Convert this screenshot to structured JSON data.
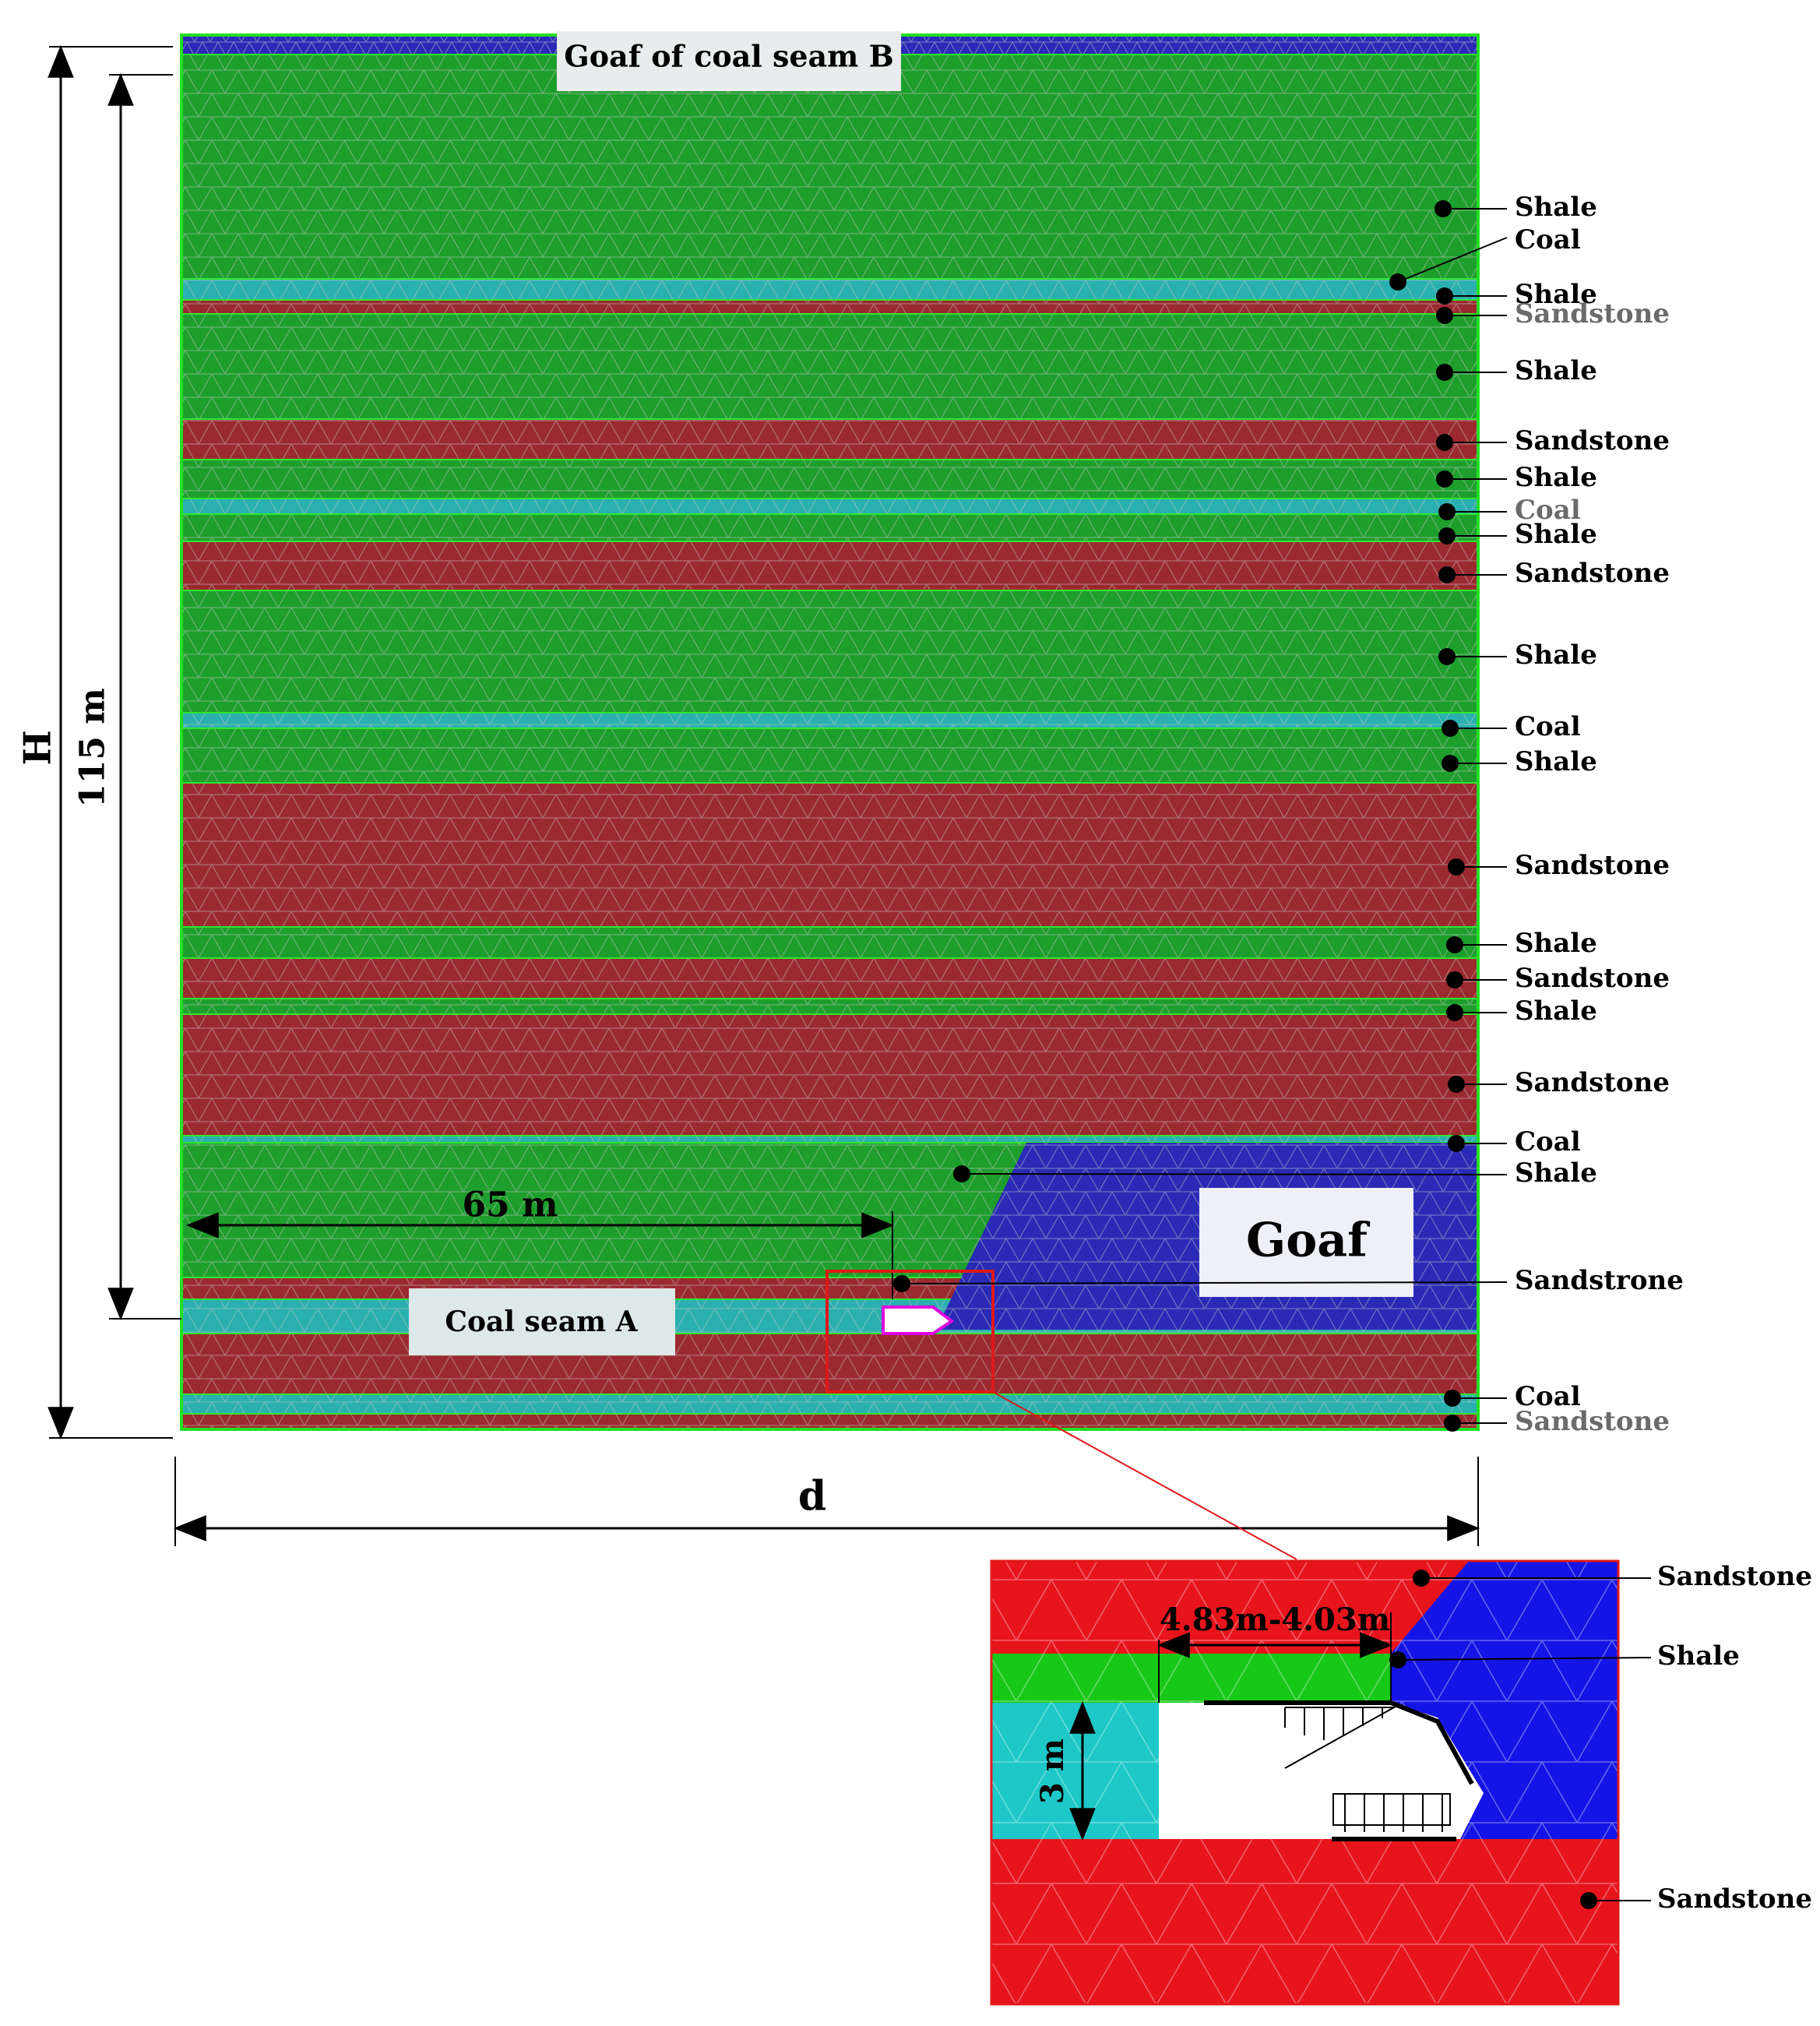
{
  "figure": {
    "top_label": "Goaf of coal seam B",
    "goaf_label": "Goaf",
    "coal_seam_label": "Coal seam A",
    "dim_H": "H",
    "dim_115": "115 m",
    "dim_65": "65 m",
    "dim_d": "d",
    "inset_width_label": "4.83m-4.03m",
    "inset_height_label": "3 m"
  },
  "strata_labels": [
    {
      "text": "Shale"
    },
    {
      "text": "Coal"
    },
    {
      "text": "Shale"
    },
    {
      "text": "Sandstone",
      "gray": true
    },
    {
      "text": "Shale"
    },
    {
      "text": "Sandstone"
    },
    {
      "text": "Shale"
    },
    {
      "text": "Coal",
      "gray": true
    },
    {
      "text": "Shale"
    },
    {
      "text": "Sandstone"
    },
    {
      "text": "Shale"
    },
    {
      "text": "Coal"
    },
    {
      "text": "Shale"
    },
    {
      "text": "Sandstone"
    },
    {
      "text": "Shale"
    },
    {
      "text": "Sandstone"
    },
    {
      "text": "Shale"
    },
    {
      "text": "Sandstone"
    },
    {
      "text": "Coal"
    },
    {
      "text": "Shale"
    },
    {
      "text": "Sandstrone"
    },
    {
      "text": "Coal"
    },
    {
      "text": "Sandstone",
      "gray": true
    }
  ],
  "inset_labels": [
    {
      "text": "Sandstone"
    },
    {
      "text": "Shale"
    },
    {
      "text": "Sandstone"
    }
  ],
  "colors": {
    "shale": "#1e9e2c",
    "sandstone": "#9b2a30",
    "coal": "#2ab0b0",
    "goaf": "#2a2ab6",
    "inset_sandstone": "#e8141c",
    "inset_shale": "#18c818",
    "inset_coal": "#1ec8c8",
    "inset_goaf": "#1414e6"
  }
}
